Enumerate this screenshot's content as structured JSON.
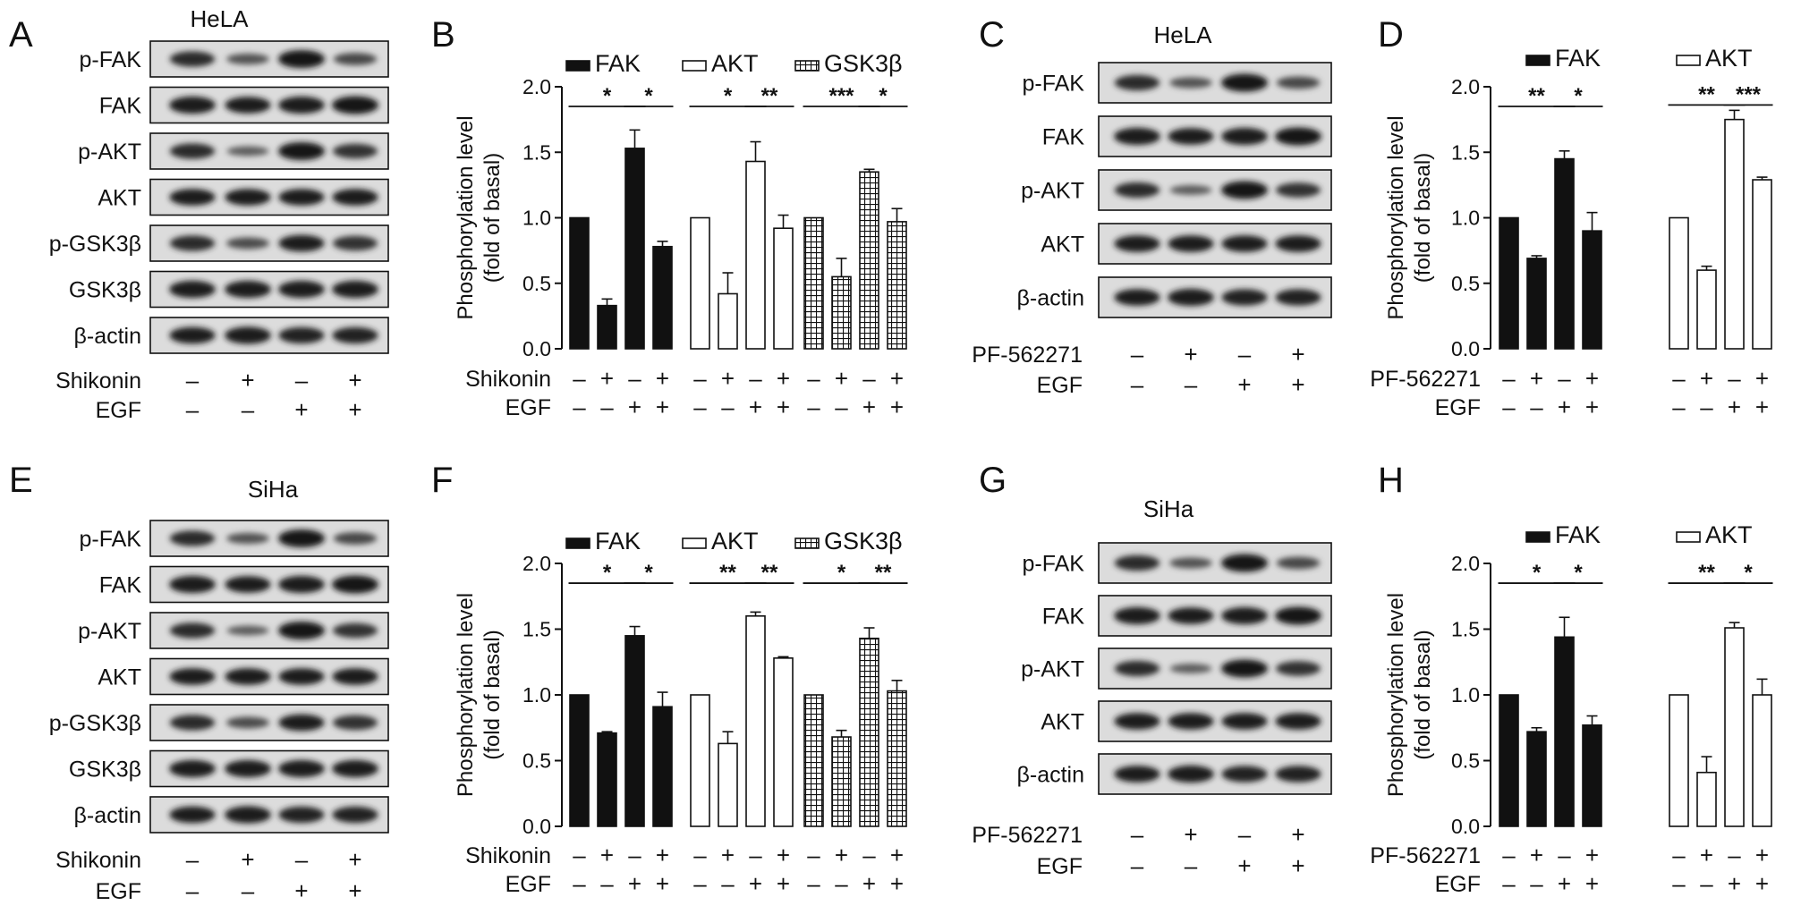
{
  "panel_letters": [
    "A",
    "B",
    "C",
    "D",
    "E",
    "F",
    "G",
    "H"
  ],
  "blots": [
    {
      "id": "A",
      "cell_line": "HeLA",
      "rows": [
        "p-FAK",
        "FAK",
        "p-AKT",
        "AKT",
        "p-GSK3β",
        "GSK3β",
        "β-actin"
      ],
      "treatments": [
        {
          "label": "Shikonin",
          "signs": [
            "–",
            "+",
            "–",
            "+"
          ]
        },
        {
          "label": "EGF",
          "signs": [
            "–",
            "–",
            "+",
            "+"
          ]
        }
      ]
    },
    {
      "id": "C",
      "cell_line": "HeLA",
      "rows": [
        "p-FAK",
        "FAK",
        "p-AKT",
        "AKT",
        "β-actin"
      ],
      "treatments": [
        {
          "label": "PF-562271",
          "signs": [
            "–",
            "+",
            "–",
            "+"
          ]
        },
        {
          "label": "EGF",
          "signs": [
            "–",
            "–",
            "+",
            "+"
          ]
        }
      ]
    },
    {
      "id": "E",
      "cell_line": "SiHa",
      "rows": [
        "p-FAK",
        "FAK",
        "p-AKT",
        "AKT",
        "p-GSK3β",
        "GSK3β",
        "β-actin"
      ],
      "treatments": [
        {
          "label": "Shikonin",
          "signs": [
            "–",
            "+",
            "–",
            "+"
          ]
        },
        {
          "label": "EGF",
          "signs": [
            "–",
            "–",
            "+",
            "+"
          ]
        }
      ]
    },
    {
      "id": "G",
      "cell_line": "SiHa",
      "rows": [
        "p-FAK",
        "FAK",
        "p-AKT",
        "AKT",
        "β-actin"
      ],
      "treatments": [
        {
          "label": "PF-562271",
          "signs": [
            "–",
            "+",
            "–",
            "+"
          ]
        },
        {
          "label": "EGF",
          "signs": [
            "–",
            "–",
            "+",
            "+"
          ]
        }
      ]
    }
  ],
  "chart_data": [
    {
      "id": "B",
      "type": "bar",
      "ylabel": [
        "Phosphorylation level",
        "(fold of basal)"
      ],
      "ylim": [
        0,
        2.0
      ],
      "yticks": [
        "0.0",
        "0.5",
        "1.0",
        "1.5",
        "2.0"
      ],
      "treatments": [
        {
          "label": "Shikonin",
          "signs": [
            "–",
            "+",
            "–",
            "+"
          ]
        },
        {
          "label": "EGF",
          "signs": [
            "–",
            "–",
            "+",
            "+"
          ]
        }
      ],
      "series": [
        {
          "name": "FAK",
          "fill": "solid",
          "values": [
            1.0,
            0.33,
            1.53,
            0.78
          ],
          "errors": [
            0,
            0.05,
            0.14,
            0.04
          ],
          "sig": [
            {
              "from": 0,
              "to": 2,
              "label": "*"
            },
            {
              "from": 2,
              "to": 3,
              "label": "*"
            }
          ]
        },
        {
          "name": "AKT",
          "fill": "open",
          "values": [
            1.0,
            0.42,
            1.43,
            0.92
          ],
          "errors": [
            0,
            0.16,
            0.15,
            0.1
          ],
          "sig": [
            {
              "from": 0,
              "to": 2,
              "label": "*"
            },
            {
              "from": 2,
              "to": 3,
              "label": "**"
            }
          ]
        },
        {
          "name": "GSK3β",
          "fill": "grid",
          "values": [
            1.0,
            0.55,
            1.35,
            0.97
          ],
          "errors": [
            0,
            0.14,
            0.02,
            0.1
          ],
          "sig": [
            {
              "from": 0,
              "to": 2,
              "label": "***"
            },
            {
              "from": 2,
              "to": 3,
              "label": "*"
            }
          ]
        }
      ]
    },
    {
      "id": "D",
      "type": "bar",
      "ylabel": [
        "Phosphorylation level",
        "(fold of basal)"
      ],
      "ylim": [
        0,
        2.0
      ],
      "yticks": [
        "0.0",
        "0.5",
        "1.0",
        "1.5",
        "2.0"
      ],
      "treatments": [
        {
          "label": "PF-562271",
          "signs": [
            "–",
            "+",
            "–",
            "+"
          ]
        },
        {
          "label": "EGF",
          "signs": [
            "–",
            "–",
            "+",
            "+"
          ]
        }
      ],
      "series": [
        {
          "name": "FAK",
          "fill": "solid",
          "values": [
            1.0,
            0.69,
            1.45,
            0.9
          ],
          "errors": [
            0,
            0.02,
            0.06,
            0.14
          ],
          "sig": [
            {
              "from": 0,
              "to": 2,
              "label": "**"
            },
            {
              "from": 2,
              "to": 3,
              "label": "*"
            }
          ]
        },
        {
          "name": "AKT",
          "fill": "open",
          "values": [
            1.0,
            0.6,
            1.75,
            1.29
          ],
          "errors": [
            0,
            0.03,
            0.07,
            0.02
          ],
          "sig": [
            {
              "from": 0,
              "to": 2,
              "label": "**"
            },
            {
              "from": 2,
              "to": 3,
              "label": "***"
            }
          ]
        }
      ]
    },
    {
      "id": "F",
      "type": "bar",
      "ylabel": [
        "Phosphorylation level",
        "(fold of basal)"
      ],
      "ylim": [
        0,
        2.0
      ],
      "yticks": [
        "0.0",
        "0.5",
        "1.0",
        "1.5",
        "2.0"
      ],
      "treatments": [
        {
          "label": "Shikonin",
          "signs": [
            "–",
            "+",
            "–",
            "+"
          ]
        },
        {
          "label": "EGF",
          "signs": [
            "–",
            "–",
            "+",
            "+"
          ]
        }
      ],
      "series": [
        {
          "name": "FAK",
          "fill": "solid",
          "values": [
            1.0,
            0.71,
            1.45,
            0.91
          ],
          "errors": [
            0,
            0.01,
            0.07,
            0.11
          ],
          "sig": [
            {
              "from": 0,
              "to": 2,
              "label": "*"
            },
            {
              "from": 2,
              "to": 3,
              "label": "*"
            }
          ]
        },
        {
          "name": "AKT",
          "fill": "open",
          "values": [
            1.0,
            0.63,
            1.6,
            1.28
          ],
          "errors": [
            0,
            0.09,
            0.03,
            0.01
          ],
          "sig": [
            {
              "from": 0,
              "to": 2,
              "label": "**"
            },
            {
              "from": 2,
              "to": 3,
              "label": "**"
            }
          ]
        },
        {
          "name": "GSK3β",
          "fill": "grid",
          "values": [
            1.0,
            0.68,
            1.43,
            1.03
          ],
          "errors": [
            0,
            0.05,
            0.08,
            0.08
          ],
          "sig": [
            {
              "from": 0,
              "to": 2,
              "label": "*"
            },
            {
              "from": 2,
              "to": 3,
              "label": "**"
            }
          ]
        }
      ]
    },
    {
      "id": "H",
      "type": "bar",
      "ylabel": [
        "Phosphorylation level",
        "(fold of basal)"
      ],
      "ylim": [
        0,
        2.0
      ],
      "yticks": [
        "0.0",
        "0.5",
        "1.0",
        "1.5",
        "2.0"
      ],
      "treatments": [
        {
          "label": "PF-562271",
          "signs": [
            "–",
            "+",
            "–",
            "+"
          ]
        },
        {
          "label": "EGF",
          "signs": [
            "–",
            "–",
            "+",
            "+"
          ]
        }
      ],
      "series": [
        {
          "name": "FAK",
          "fill": "solid",
          "values": [
            1.0,
            0.72,
            1.44,
            0.77
          ],
          "errors": [
            0,
            0.03,
            0.15,
            0.07
          ],
          "sig": [
            {
              "from": 0,
              "to": 2,
              "label": "*"
            },
            {
              "from": 2,
              "to": 3,
              "label": "*"
            }
          ]
        },
        {
          "name": "AKT",
          "fill": "open",
          "values": [
            1.0,
            0.41,
            1.51,
            1.0
          ],
          "errors": [
            0,
            0.12,
            0.04,
            0.12
          ],
          "sig": [
            {
              "from": 0,
              "to": 2,
              "label": "**"
            },
            {
              "from": 2,
              "to": 3,
              "label": "*"
            }
          ]
        }
      ]
    }
  ]
}
